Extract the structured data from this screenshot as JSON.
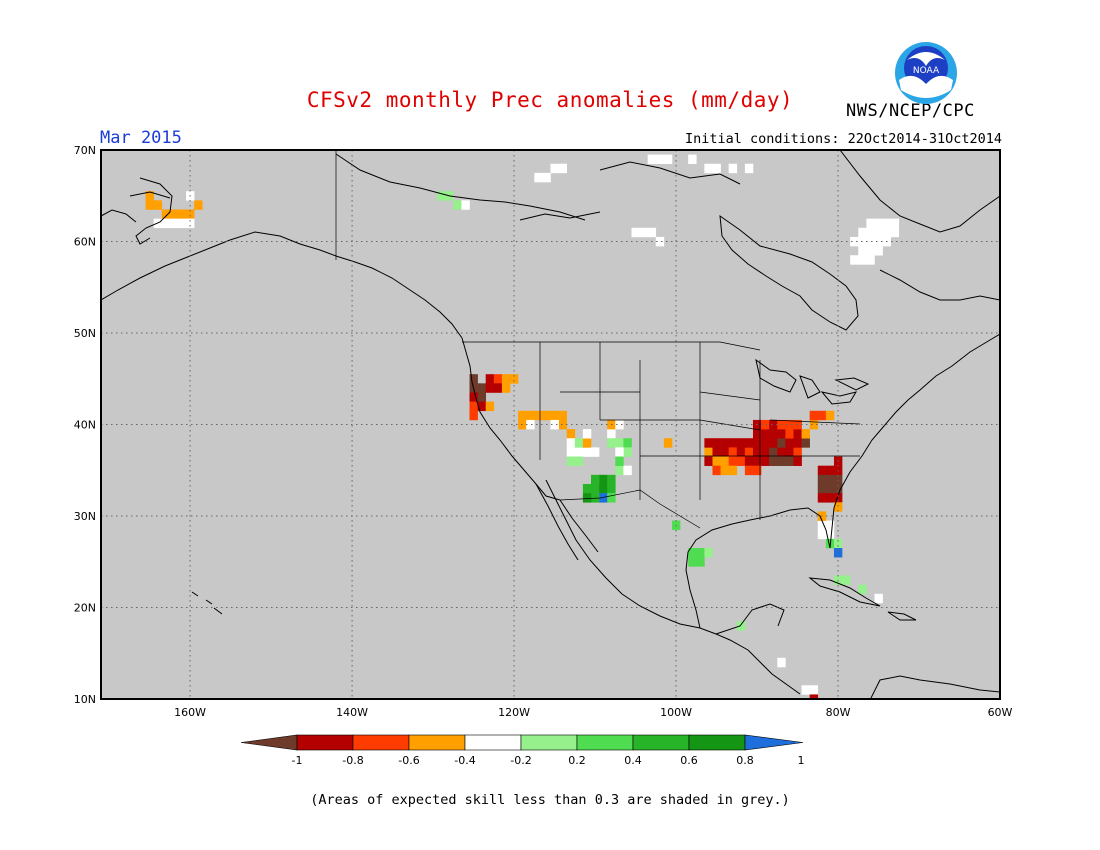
{
  "header": {
    "title": "CFSv2 monthly Prec anomalies (mm/day)",
    "org": "NWS/NCEP/CPC",
    "month": "Mar 2015",
    "initial_conditions": "Initial conditions: 22Oct2014-31Oct2014",
    "logo_text": "NOAA"
  },
  "map": {
    "lat_labels": [
      "70N",
      "60N",
      "50N",
      "40N",
      "30N",
      "20N",
      "10N"
    ],
    "lon_labels": [
      "160W",
      "140W",
      "120W",
      "100W",
      "80W",
      "60W"
    ],
    "background_color": "#c8c8c8"
  },
  "colorbar": {
    "ticks": [
      "-1",
      "-0.8",
      "-0.6",
      "-0.4",
      "-0.2",
      "0.2",
      "0.4",
      "0.6",
      "0.8",
      "1"
    ],
    "colors": [
      "#6e3b2a",
      "#b40000",
      "#ff3c00",
      "#ff9f00",
      "#ffffff",
      "#96f08c",
      "#50dc50",
      "#28b428",
      "#149614",
      "#1e6edc"
    ]
  },
  "footnote": "(Areas of expected skill less than 0.3 are shaded in grey.)"
}
